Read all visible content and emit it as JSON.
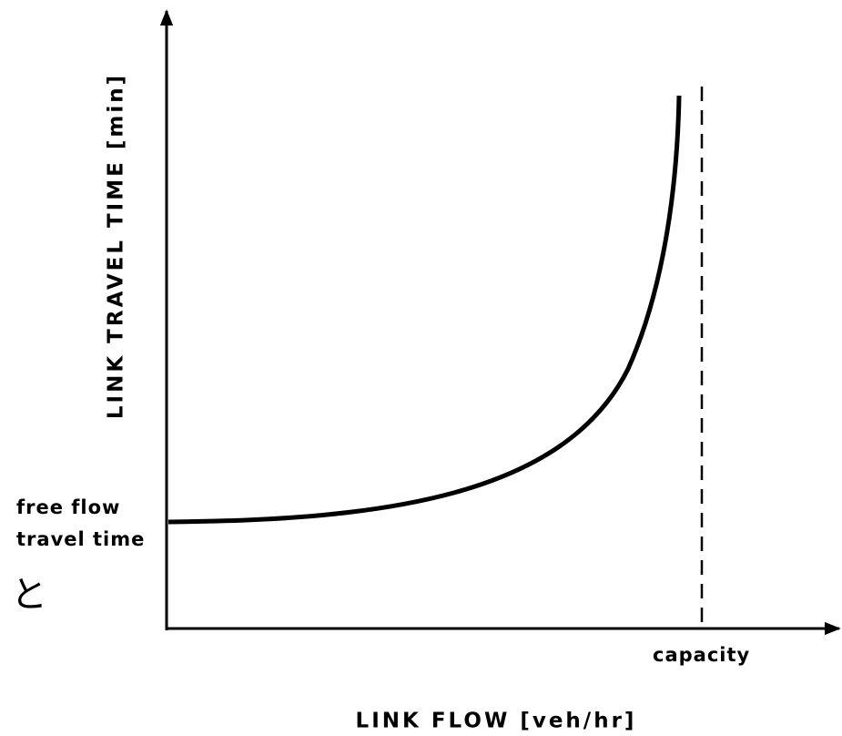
{
  "y_axis_label": "LINK TRAVEL TIME [min]",
  "x_axis_label": "LINK FLOW [veh/hr]",
  "free_flow_label": [
    "free flow",
    "travel time"
  ],
  "capacity_label": "capacity",
  "fragment_text": "と"
}
